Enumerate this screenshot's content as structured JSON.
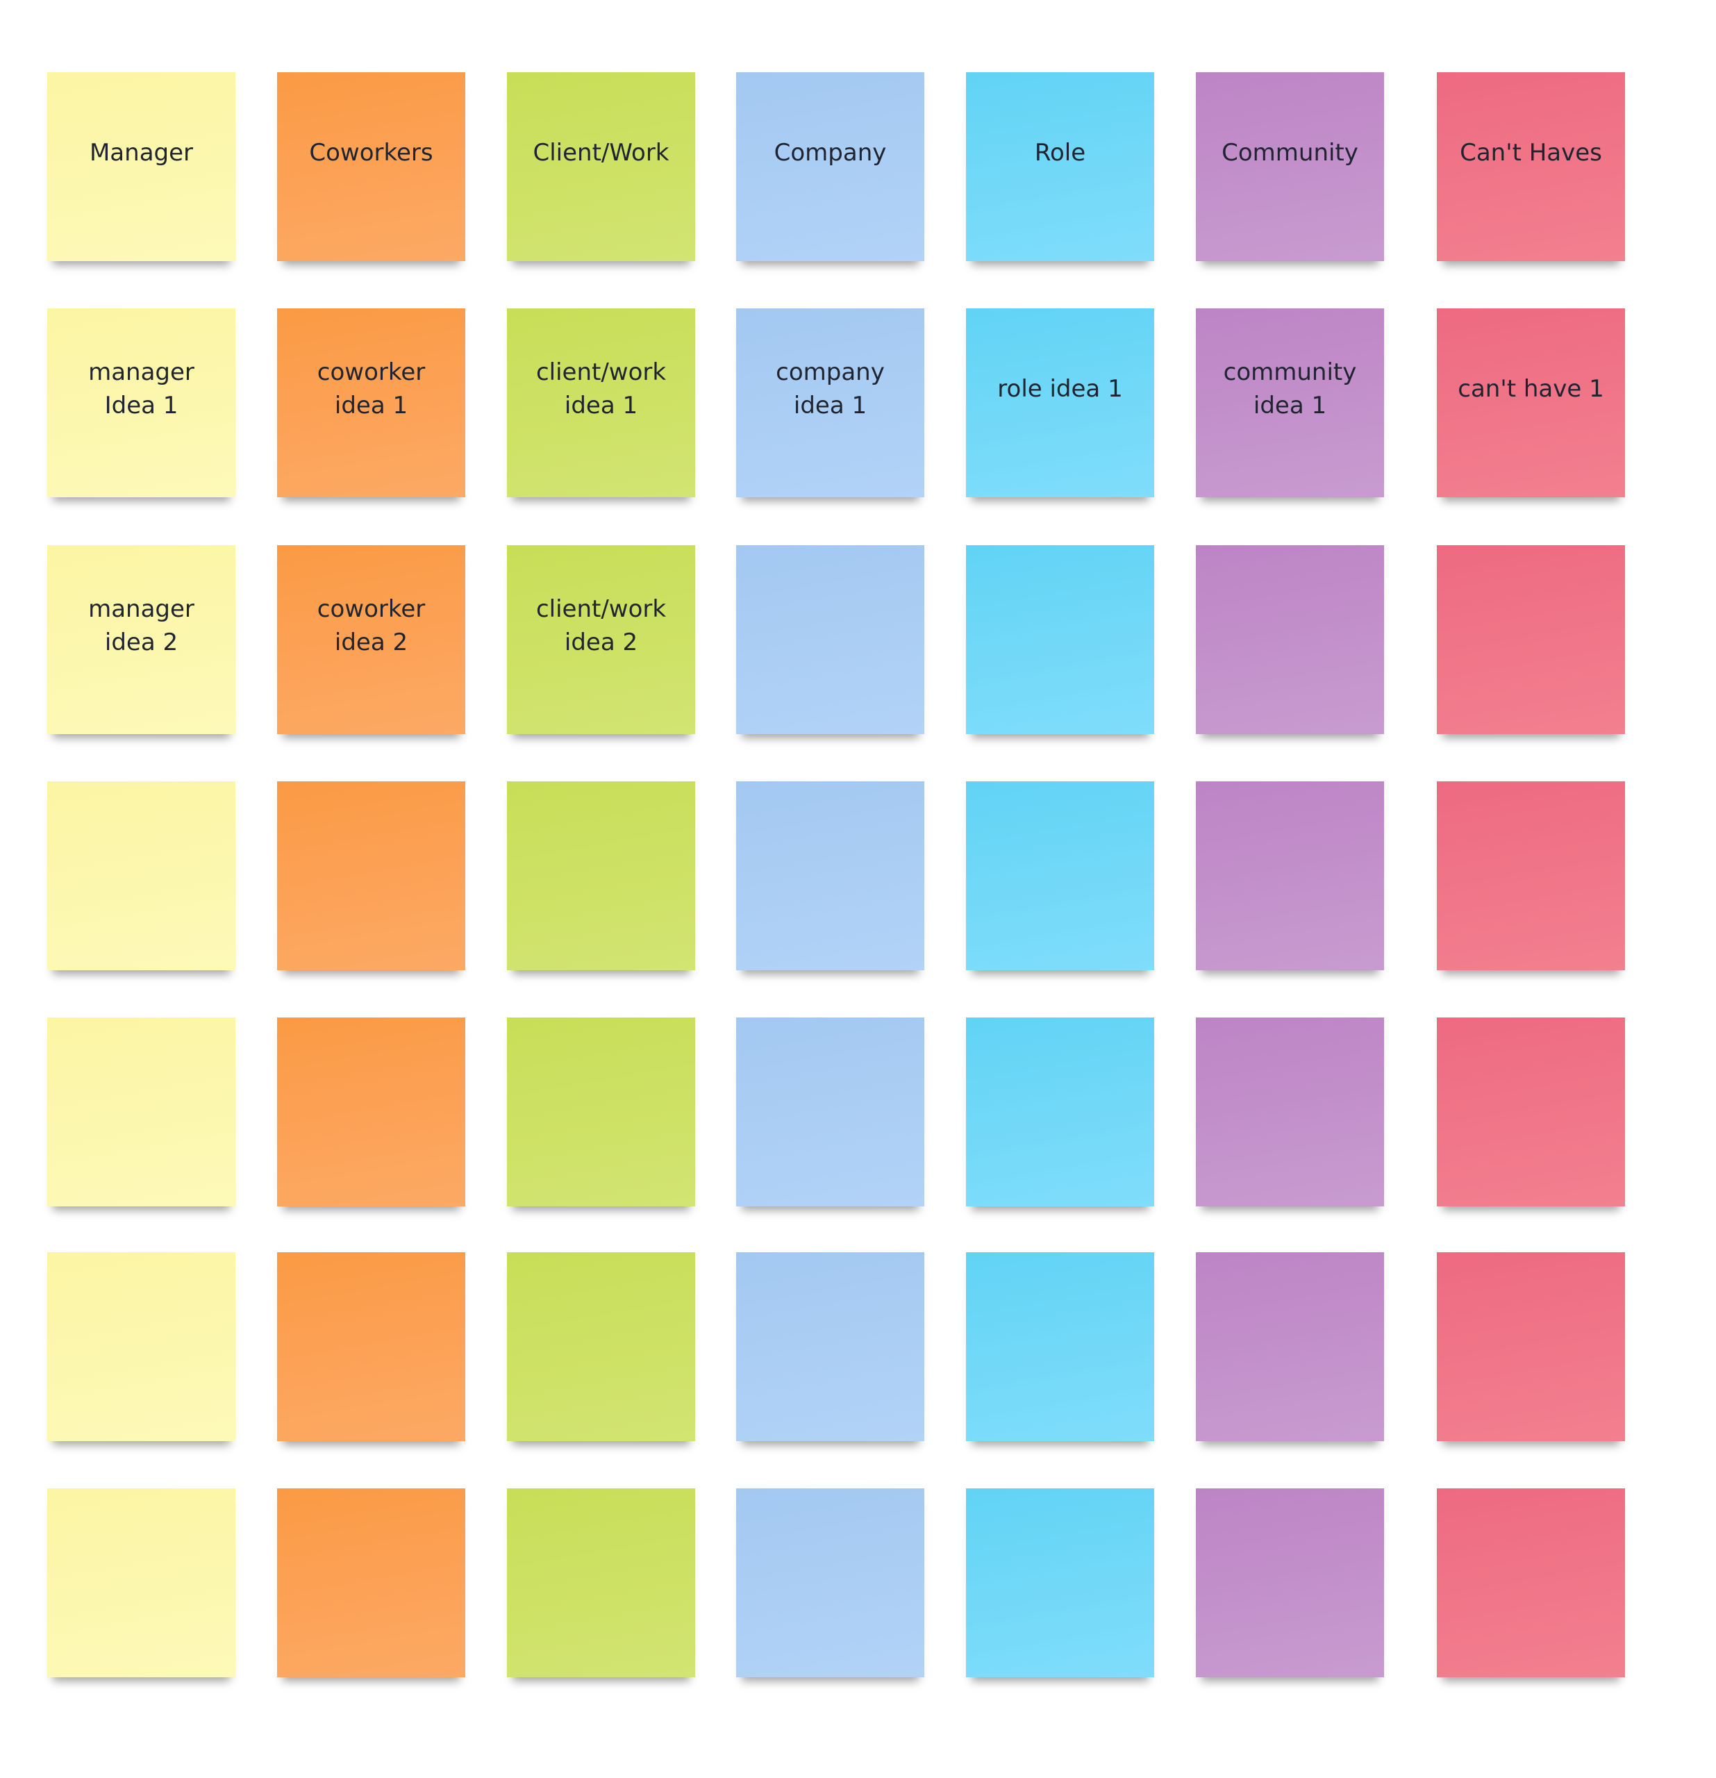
{
  "columns": [
    {
      "header": "Manager",
      "notes": [
        "manager Idea 1",
        "manager idea 2"
      ]
    },
    {
      "header": "Coworkers",
      "notes": [
        "coworker idea 1",
        "coworker idea 2"
      ]
    },
    {
      "header": "Client/Work",
      "notes": [
        "client/work idea 1",
        "client/work idea 2"
      ]
    },
    {
      "header": "Company",
      "notes": [
        "company idea 1"
      ]
    },
    {
      "header": "Role",
      "notes": [
        "role idea 1"
      ]
    },
    {
      "header": "Community",
      "notes": [
        "community idea 1"
      ]
    },
    {
      "header": "Can't Haves",
      "notes": [
        "can't have 1"
      ]
    }
  ]
}
